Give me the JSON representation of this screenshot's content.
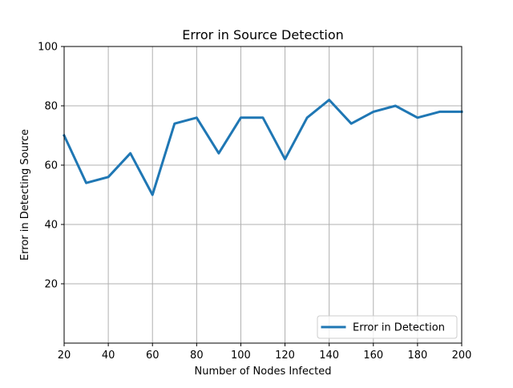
{
  "chart_data": {
    "type": "line",
    "title": "Error in Source Detection",
    "xlabel": "Number of Nodes Infected",
    "ylabel": "Error in Detecting Source",
    "xlim": [
      20,
      200
    ],
    "ylim": [
      0,
      100
    ],
    "xticks": [
      20,
      40,
      60,
      80,
      100,
      120,
      140,
      160,
      180,
      200
    ],
    "yticks": [
      20,
      40,
      60,
      80,
      100
    ],
    "grid": true,
    "legend_position": "lower-right",
    "x": [
      20,
      30,
      40,
      50,
      60,
      70,
      80,
      90,
      100,
      110,
      120,
      130,
      140,
      150,
      160,
      170,
      180,
      190,
      200
    ],
    "series": [
      {
        "name": "Error in Detection",
        "color": "#1f77b4",
        "values": [
          70,
          54,
          56,
          64,
          50,
          74,
          76,
          64,
          76,
          76,
          62,
          76,
          82,
          74,
          78,
          80,
          76,
          78,
          78
        ]
      }
    ]
  }
}
